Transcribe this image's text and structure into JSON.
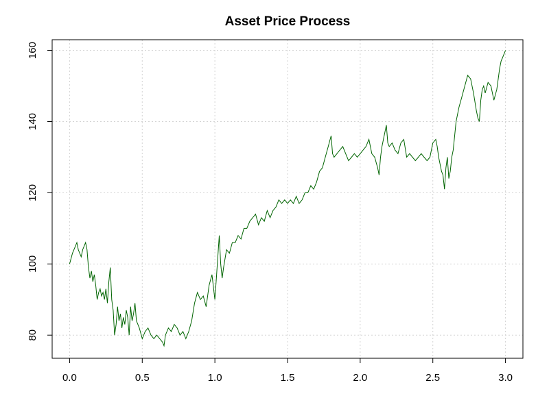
{
  "chart_data": {
    "type": "line",
    "title": "Asset Price Process",
    "xlabel": "",
    "ylabel": "",
    "xlim": [
      -0.12,
      3.12
    ],
    "ylim": [
      73.5,
      163
    ],
    "x_ticks": [
      "0.0",
      "0.5",
      "1.0",
      "1.5",
      "2.0",
      "2.5",
      "3.0"
    ],
    "y_ticks": [
      "80",
      "100",
      "120",
      "140",
      "160"
    ],
    "x_tick_values": [
      0.0,
      0.5,
      1.0,
      1.5,
      2.0,
      2.5,
      3.0
    ],
    "y_tick_values": [
      80,
      100,
      120,
      140,
      160
    ],
    "grid": true,
    "line_color": "#006400",
    "series": [
      {
        "x": [
          0.0,
          0.02,
          0.04,
          0.05,
          0.06,
          0.07,
          0.08,
          0.09,
          0.1,
          0.11,
          0.12,
          0.13,
          0.14,
          0.15,
          0.16,
          0.17,
          0.18,
          0.19,
          0.2,
          0.21,
          0.22,
          0.23,
          0.24,
          0.25,
          0.26,
          0.27,
          0.28,
          0.29,
          0.3,
          0.31,
          0.32,
          0.33,
          0.34,
          0.35,
          0.36,
          0.37,
          0.38,
          0.39,
          0.4,
          0.41,
          0.42,
          0.43,
          0.44,
          0.45,
          0.46,
          0.47,
          0.48,
          0.5,
          0.52,
          0.54,
          0.56,
          0.58,
          0.6,
          0.62,
          0.64,
          0.65,
          0.66,
          0.68,
          0.7,
          0.72,
          0.74,
          0.76,
          0.78,
          0.8,
          0.81,
          0.82,
          0.84,
          0.86,
          0.88,
          0.9,
          0.92,
          0.94,
          0.96,
          0.98,
          1.0,
          1.01,
          1.02,
          1.03,
          1.04,
          1.05,
          1.06,
          1.08,
          1.1,
          1.12,
          1.14,
          1.16,
          1.18,
          1.2,
          1.22,
          1.24,
          1.26,
          1.28,
          1.3,
          1.32,
          1.34,
          1.36,
          1.38,
          1.4,
          1.42,
          1.44,
          1.46,
          1.48,
          1.5,
          1.52,
          1.54,
          1.56,
          1.58,
          1.6,
          1.62,
          1.64,
          1.66,
          1.68,
          1.7,
          1.72,
          1.74,
          1.76,
          1.78,
          1.8,
          1.81,
          1.82,
          1.84,
          1.86,
          1.88,
          1.9,
          1.92,
          1.94,
          1.96,
          1.98,
          2.0,
          2.02,
          2.04,
          2.06,
          2.08,
          2.1,
          2.12,
          2.13,
          2.14,
          2.15,
          2.16,
          2.18,
          2.19,
          2.2,
          2.22,
          2.24,
          2.26,
          2.28,
          2.3,
          2.32,
          2.34,
          2.36,
          2.38,
          2.4,
          2.42,
          2.44,
          2.46,
          2.48,
          2.5,
          2.52,
          2.53,
          2.54,
          2.55,
          2.56,
          2.57,
          2.58,
          2.59,
          2.6,
          2.61,
          2.62,
          2.63,
          2.64,
          2.65,
          2.66,
          2.68,
          2.7,
          2.72,
          2.74,
          2.76,
          2.78,
          2.8,
          2.81,
          2.82,
          2.83,
          2.84,
          2.85,
          2.86,
          2.88,
          2.9,
          2.92,
          2.94,
          2.95,
          2.96,
          2.97,
          2.98,
          2.99,
          3.0
        ],
        "y": [
          100,
          103,
          105,
          106,
          104,
          103,
          102,
          104,
          105,
          106,
          104,
          99,
          96,
          98,
          95,
          97,
          94,
          90,
          92,
          93,
          91,
          92,
          90,
          93,
          89,
          95,
          99,
          90,
          87,
          80,
          83,
          88,
          84,
          86,
          82,
          85,
          83,
          87,
          85,
          80,
          88,
          84,
          86,
          89,
          84,
          83,
          82,
          79,
          81,
          82,
          80,
          79,
          80,
          79,
          78,
          77,
          80,
          82,
          81,
          83,
          82,
          80,
          81,
          79,
          80,
          81,
          84,
          89,
          92,
          90,
          91,
          88,
          94,
          97,
          90,
          96,
          102,
          108,
          100,
          96,
          99,
          104,
          103,
          106,
          106,
          108,
          107,
          110,
          110,
          112,
          113,
          114,
          111,
          113,
          112,
          115,
          113,
          115,
          116,
          118,
          117,
          118,
          117,
          118,
          117,
          119,
          117,
          118,
          120,
          120,
          122,
          121,
          123,
          126,
          127,
          130,
          133,
          136,
          131,
          130,
          131,
          132,
          133,
          131,
          129,
          130,
          131,
          130,
          131,
          132,
          133,
          135,
          131,
          130,
          127,
          125,
          130,
          133,
          135,
          139,
          134,
          133,
          134,
          132,
          131,
          134,
          135,
          130,
          131,
          130,
          129,
          130,
          131,
          130,
          129,
          130,
          134,
          135,
          133,
          130,
          128,
          126,
          125,
          121,
          127,
          130,
          124,
          126,
          130,
          132,
          136,
          140,
          144,
          147,
          150,
          153,
          152,
          148,
          143,
          141,
          140,
          146,
          149,
          150,
          148,
          151,
          150,
          146,
          149,
          152,
          155,
          157,
          158,
          159,
          160
        ]
      }
    ]
  }
}
